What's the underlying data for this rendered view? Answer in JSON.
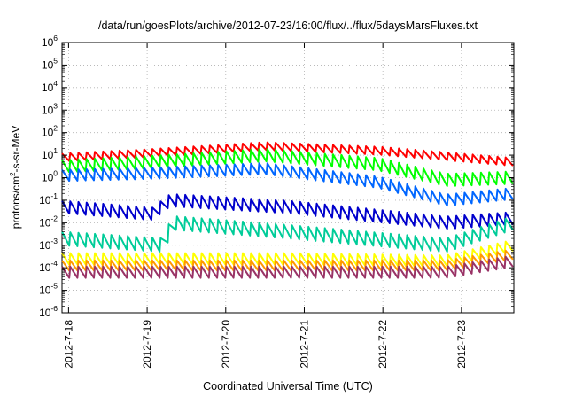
{
  "chart_data": {
    "type": "line",
    "title": "/data/run/goesPlots/archive/2012-07-23/16:00/flux/../flux/5daysMarsFluxes.txt",
    "xlabel": "Coordinated Universal Time (UTC)",
    "ylabel_parts": {
      "prefix": "protons/cm",
      "sup": "2",
      "suffix": "-s-sr-MeV"
    },
    "x_ticks": [
      "2012-7-18",
      "2012-7-19",
      "2012-7-20",
      "2012-7-21",
      "2012-7-22",
      "2012-7-23"
    ],
    "x_range": [
      "2012-07-17T22:00",
      "2012-07-23T16:00"
    ],
    "y_scale": "log",
    "y_ticks": [
      {
        "base": "10",
        "exp": "-6"
      },
      {
        "base": "10",
        "exp": "-5"
      },
      {
        "base": "10",
        "exp": "-4"
      },
      {
        "base": "10",
        "exp": "-3"
      },
      {
        "base": "10",
        "exp": "-2"
      },
      {
        "base": "10",
        "exp": "-1"
      },
      {
        "base": "10",
        "exp": "0"
      },
      {
        "base": "10",
        "exp": "1"
      },
      {
        "base": "10",
        "exp": "2"
      },
      {
        "base": "10",
        "exp": "3"
      },
      {
        "base": "10",
        "exp": "4"
      },
      {
        "base": "10",
        "exp": "5"
      },
      {
        "base": "10",
        "exp": "6"
      }
    ],
    "y_exp_range": [
      -6,
      6
    ],
    "grid": true,
    "sawtooth_cycles": 55,
    "series": [
      {
        "color": "#ff0000",
        "log_envelope": [
          [
            0,
            0.9
          ],
          [
            0.2,
            1.1
          ],
          [
            0.45,
            1.4
          ],
          [
            0.7,
            1.2
          ],
          [
            1,
            0.7
          ]
        ],
        "amplitude": 0.35
      },
      {
        "color": "#00ff00",
        "log_envelope": [
          [
            0,
            0.5
          ],
          [
            0.2,
            0.7
          ],
          [
            0.45,
            1.0
          ],
          [
            0.7,
            0.6
          ],
          [
            0.85,
            -0.1
          ],
          [
            1,
            0.0
          ]
        ],
        "amplitude": 0.55
      },
      {
        "color": "#0066ff",
        "log_envelope": [
          [
            0,
            0.1
          ],
          [
            0.2,
            0.2
          ],
          [
            0.45,
            0.4
          ],
          [
            0.7,
            -0.2
          ],
          [
            0.85,
            -1.0
          ],
          [
            1,
            -0.7
          ]
        ],
        "amplitude": 0.5
      },
      {
        "color": "#0000cc",
        "log_envelope": [
          [
            0,
            -1.3
          ],
          [
            0.2,
            -1.6
          ],
          [
            0.24,
            -1.0
          ],
          [
            0.5,
            -1.3
          ],
          [
            0.85,
            -2.0
          ],
          [
            1,
            -1.8
          ]
        ],
        "amplitude": 0.55
      },
      {
        "color": "#00cc99",
        "log_envelope": [
          [
            0,
            -2.7
          ],
          [
            0.23,
            -3.0
          ],
          [
            0.24,
            -2.0
          ],
          [
            0.5,
            -2.4
          ],
          [
            0.85,
            -3.0
          ],
          [
            1,
            -2.0
          ]
        ],
        "amplitude": 0.6
      },
      {
        "color": "#ffff00",
        "log_envelope": [
          [
            0,
            -3.6
          ],
          [
            0.5,
            -3.6
          ],
          [
            0.85,
            -3.7
          ],
          [
            1,
            -3.0
          ]
        ],
        "amplitude": 0.5
      },
      {
        "color": "#ff9900",
        "log_envelope": [
          [
            0,
            -3.9
          ],
          [
            0.5,
            -3.9
          ],
          [
            0.85,
            -3.9
          ],
          [
            1,
            -3.4
          ]
        ],
        "amplitude": 0.45
      },
      {
        "color": "#993366",
        "log_envelope": [
          [
            0,
            -4.2
          ],
          [
            0.5,
            -4.2
          ],
          [
            0.85,
            -4.2
          ],
          [
            1,
            -3.7
          ]
        ],
        "amplitude": 0.5
      }
    ]
  }
}
